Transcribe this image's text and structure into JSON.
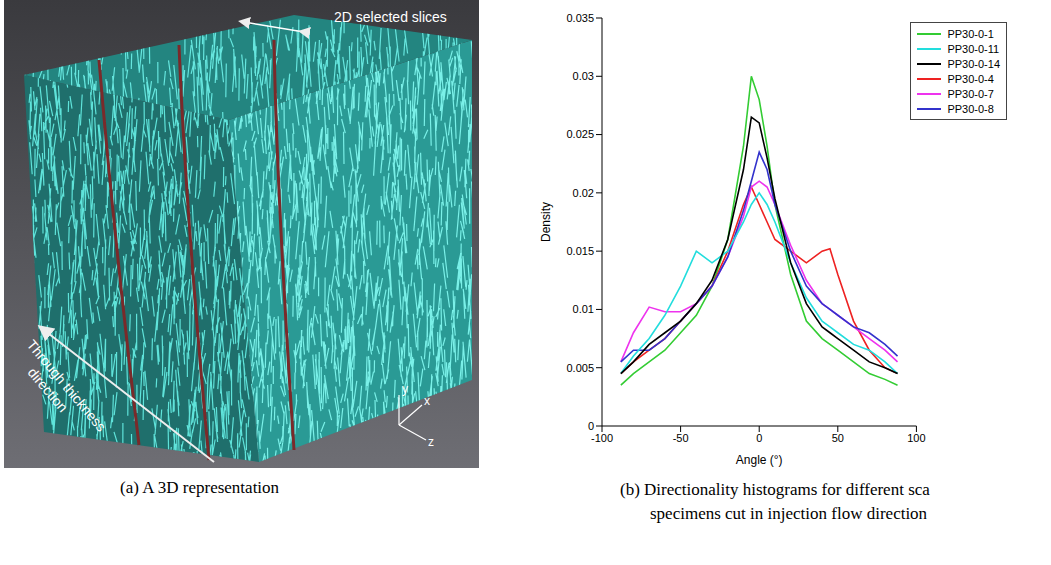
{
  "panel_a": {
    "caption": "(a)  A 3D representation",
    "annotation": "2D selected slices",
    "direction_label": [
      "Through thickness",
      "direction"
    ],
    "axes": [
      "y",
      "x",
      "z"
    ]
  },
  "chart_data": {
    "type": "line",
    "caption": [
      "(b)  Directionality histograms for different sca",
      "specimens cut in injection flow direction"
    ],
    "x_label": "Angle (°)",
    "y_label": "Density",
    "x": [
      -88,
      -80,
      -70,
      -60,
      -50,
      -40,
      -30,
      -20,
      -10,
      -5,
      0,
      5,
      10,
      20,
      30,
      40,
      45,
      50,
      60,
      70,
      80,
      88
    ],
    "series": [
      {
        "name": "PP30-0-1",
        "color": "#33cc33",
        "values": [
          0.0035,
          0.0045,
          0.0055,
          0.0065,
          0.008,
          0.0095,
          0.012,
          0.016,
          0.024,
          0.03,
          0.028,
          0.024,
          0.019,
          0.013,
          0.009,
          0.0075,
          0.007,
          0.0065,
          0.0055,
          0.0045,
          0.004,
          0.0035
        ]
      },
      {
        "name": "PP30-0-4",
        "color": "#ee2222",
        "values": [
          0.0045,
          0.0055,
          0.0065,
          0.0075,
          0.009,
          0.0105,
          0.012,
          0.015,
          0.019,
          0.0205,
          0.019,
          0.0175,
          0.016,
          0.015,
          0.014,
          0.015,
          0.0152,
          0.013,
          0.009,
          0.0065,
          0.005,
          0.0045
        ]
      },
      {
        "name": "PP30-0-7",
        "color": "#ee33ee",
        "values": [
          0.0055,
          0.008,
          0.0102,
          0.0098,
          0.0098,
          0.0105,
          0.012,
          0.0145,
          0.018,
          0.0205,
          0.021,
          0.0205,
          0.019,
          0.0155,
          0.0125,
          0.0105,
          0.01,
          0.0095,
          0.0085,
          0.0075,
          0.0065,
          0.0055
        ]
      },
      {
        "name": "PP30-0-8",
        "color": "#3333cc",
        "values": [
          0.0055,
          0.0065,
          0.0065,
          0.0075,
          0.009,
          0.0105,
          0.012,
          0.0145,
          0.0185,
          0.021,
          0.0235,
          0.022,
          0.019,
          0.015,
          0.012,
          0.0105,
          0.01,
          0.0095,
          0.0085,
          0.008,
          0.007,
          0.006
        ]
      },
      {
        "name": "PP30-0-11",
        "color": "#22dddd",
        "values": [
          0.0045,
          0.006,
          0.0075,
          0.0095,
          0.012,
          0.015,
          0.014,
          0.015,
          0.0175,
          0.019,
          0.02,
          0.019,
          0.0175,
          0.014,
          0.011,
          0.009,
          0.0085,
          0.008,
          0.007,
          0.0065,
          0.0055,
          0.0045
        ]
      },
      {
        "name": "PP30-0-14",
        "color": "#000000",
        "values": [
          0.0045,
          0.0055,
          0.007,
          0.008,
          0.009,
          0.0105,
          0.0125,
          0.016,
          0.022,
          0.0265,
          0.026,
          0.023,
          0.0195,
          0.014,
          0.0105,
          0.0085,
          0.008,
          0.0075,
          0.0065,
          0.0055,
          0.005,
          0.0045
        ]
      }
    ],
    "xlim": [
      -100,
      100
    ],
    "xticks": [
      -100,
      -50,
      0,
      50,
      100
    ],
    "ylim": [
      0,
      0.035
    ],
    "yticks": [
      0,
      0.005,
      0.01,
      0.015,
      0.02,
      0.025,
      0.03,
      0.035
    ],
    "legend": "upper right",
    "grid": false
  }
}
